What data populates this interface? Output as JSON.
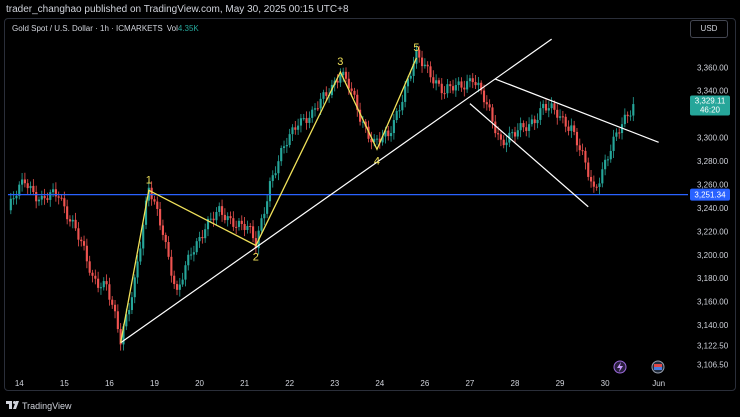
{
  "header": {
    "published": "trader_changhao published on TradingView.com, May 30, 2025 00:15 UTC+8"
  },
  "legend": {
    "symbol": "Gold Spot / U.S. Dollar · 1h · ICMARKETS",
    "vol_label": "Vol",
    "vol_value": "4.35K"
  },
  "currency": "USD",
  "footer": {
    "brand": "TradingView"
  },
  "colors": {
    "up": "#26a69a",
    "down": "#ef5350",
    "wave": "#f0e15a",
    "trend": "#ffffff",
    "support": "#2962ff",
    "price_tag": "#26a69a",
    "support_tag": "#2962ff"
  },
  "icons": [
    "tradingview-logo-icon",
    "lightning-icon",
    "flag-icon"
  ],
  "chart_data": {
    "type": "candlestick",
    "symbol": "XAUUSD",
    "timeframe": "1h",
    "ylim": [
      3100,
      3385
    ],
    "y_ticks": [
      {
        "value": 3360,
        "label": "3,360.00"
      },
      {
        "value": 3340,
        "label": "3,340.00"
      },
      {
        "value": 3300,
        "label": "3,300.00"
      },
      {
        "value": 3280,
        "label": "3,280.00"
      },
      {
        "value": 3260,
        "label": "3,260.00"
      },
      {
        "value": 3240,
        "label": "3,240.00"
      },
      {
        "value": 3220,
        "label": "3,220.00"
      },
      {
        "value": 3200,
        "label": "3,200.00"
      },
      {
        "value": 3180,
        "label": "3,180.00"
      },
      {
        "value": 3160,
        "label": "3,160.00"
      },
      {
        "value": 3140,
        "label": "3,140.00"
      },
      {
        "value": 3122.5,
        "label": "3,122.50"
      },
      {
        "value": 3106.5,
        "label": "3,106.50"
      }
    ],
    "x_ticks": [
      "14",
      "15",
      "16",
      "19",
      "20",
      "21",
      "22",
      "23",
      "24",
      "26",
      "27",
      "28",
      "29",
      "30",
      "Jun"
    ],
    "x_tick_index": [
      4,
      20,
      36,
      52,
      68,
      84,
      100,
      116,
      132,
      148,
      164,
      180,
      196,
      212,
      231
    ],
    "last_price": {
      "value": 3329.11,
      "label": "3,329.11",
      "countdown": "46:20"
    },
    "support_level": {
      "value": 3251.34,
      "label": "3,251.34"
    },
    "close_path": [
      [
        0,
        3238
      ],
      [
        6,
        3264
      ],
      [
        12,
        3246
      ],
      [
        18,
        3252
      ],
      [
        24,
        3222
      ],
      [
        30,
        3180
      ],
      [
        35,
        3175
      ],
      [
        40,
        3125
      ],
      [
        45,
        3180
      ],
      [
        50,
        3255
      ],
      [
        55,
        3222
      ],
      [
        60,
        3165
      ],
      [
        65,
        3202
      ],
      [
        70,
        3225
      ],
      [
        75,
        3235
      ],
      [
        80,
        3230
      ],
      [
        85,
        3222
      ],
      [
        88,
        3208
      ],
      [
        93,
        3262
      ],
      [
        98,
        3290
      ],
      [
        103,
        3316
      ],
      [
        108,
        3318
      ],
      [
        113,
        3338
      ],
      [
        118,
        3356
      ],
      [
        121,
        3343
      ],
      [
        125,
        3318
      ],
      [
        130,
        3296
      ],
      [
        135,
        3300
      ],
      [
        140,
        3336
      ],
      [
        145,
        3368
      ],
      [
        150,
        3356
      ],
      [
        155,
        3338
      ],
      [
        160,
        3344
      ],
      [
        165,
        3352
      ],
      [
        170,
        3326
      ],
      [
        175,
        3298
      ],
      [
        180,
        3302
      ],
      [
        185,
        3312
      ],
      [
        190,
        3326
      ],
      [
        195,
        3320
      ],
      [
        200,
        3310
      ],
      [
        205,
        3275
      ],
      [
        208,
        3255
      ],
      [
        212,
        3280
      ],
      [
        217,
        3305
      ],
      [
        222,
        3330
      ]
    ],
    "waves": [
      {
        "label": "1",
        "index": 50,
        "value": 3255
      },
      {
        "label": "2",
        "index": 88,
        "value": 3208
      },
      {
        "label": "3",
        "index": 118,
        "value": 3356
      },
      {
        "label": "4",
        "index": 131,
        "value": 3290
      },
      {
        "label": "5",
        "index": 145,
        "value": 3368
      }
    ],
    "wave_path": [
      {
        "index": 40,
        "value": 3125
      },
      {
        "index": 50,
        "value": 3255
      },
      {
        "index": 88,
        "value": 3208
      },
      {
        "index": 118,
        "value": 3356
      },
      {
        "index": 131,
        "value": 3290
      },
      {
        "index": 145,
        "value": 3368
      }
    ],
    "trendlines": [
      {
        "from": {
          "index": 40,
          "value": 3125
        },
        "to": {
          "index": 193,
          "value": 3384
        }
      },
      {
        "from": {
          "index": 173,
          "value": 3350
        },
        "to": {
          "index": 231,
          "value": 3296
        }
      },
      {
        "from": {
          "index": 164,
          "value": 3329
        },
        "to": {
          "index": 206,
          "value": 3241
        }
      }
    ]
  }
}
